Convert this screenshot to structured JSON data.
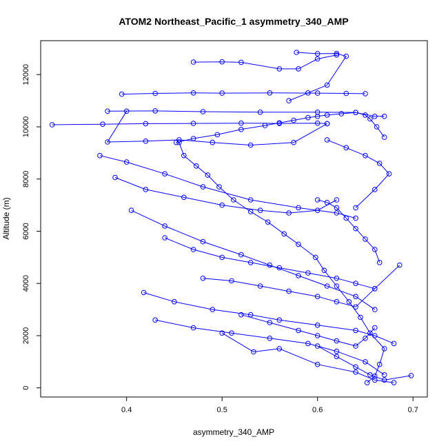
{
  "chart_data": {
    "type": "line",
    "title": "ATOM2 Northeast_Pacific_1 asymmetry_340_AMP",
    "xlabel": "asymmetry_340_AMP",
    "ylabel": "Altitude (m)",
    "xlim": [
      0.31,
      0.715
    ],
    "ylim": [
      -350,
      13300
    ],
    "x_ticks": [
      0.4,
      0.5,
      0.6,
      0.7
    ],
    "x_tick_labels": [
      "0.4",
      "0.5",
      "0.6",
      "0.7"
    ],
    "y_ticks": [
      0,
      2000,
      4000,
      6000,
      8000,
      10000,
      12000
    ],
    "y_tick_labels": [
      "0",
      "2000",
      "4000",
      "6000",
      "8000",
      "10000",
      "12000"
    ],
    "grid": false,
    "legend": "none",
    "marker": "open-circle",
    "color": "#0000ff",
    "series": [
      {
        "x": [
          0.652,
          0.66,
          0.665,
          0.67,
          0.655,
          0.645,
          0.633,
          0.62,
          0.607,
          0.598,
          0.58,
          0.565,
          0.548,
          0.53,
          0.512,
          0.497,
          0.485,
          0.473,
          0.46,
          0.455
        ],
        "y": [
          200,
          450,
          900,
          1500,
          2100,
          2700,
          3300,
          3900,
          4500,
          5000,
          5500,
          5900,
          6350,
          6750,
          7200,
          7700,
          8150,
          8500,
          8900,
          9400
        ]
      },
      {
        "x": [
          0.452,
          0.47,
          0.495,
          0.52,
          0.545,
          0.56,
          0.575,
          0.59,
          0.6,
          0.61,
          0.625,
          0.64,
          0.65,
          0.655,
          0.662,
          0.67
        ],
        "y": [
          9400,
          9550,
          9700,
          9900,
          10050,
          10150,
          10250,
          10350,
          10400,
          10450,
          10500,
          10550,
          10450,
          10300,
          10000,
          9600
        ]
      },
      {
        "x": [
          0.322,
          0.375,
          0.42,
          0.47,
          0.52,
          0.56,
          0.6,
          0.61
        ],
        "y": [
          10080,
          10100,
          10120,
          10130,
          10140,
          10130,
          10140,
          10120
        ]
      },
      {
        "x": [
          0.61,
          0.575,
          0.53,
          0.49,
          0.455,
          0.42,
          0.38,
          0.4
        ],
        "y": [
          10120,
          9400,
          9300,
          9400,
          9500,
          9450,
          9420,
          10600
        ]
      },
      {
        "x": [
          0.38,
          0.43,
          0.48,
          0.54,
          0.6,
          0.64,
          0.66,
          0.67
        ],
        "y": [
          10600,
          10610,
          10580,
          10560,
          10560,
          10550,
          10400,
          10400
        ]
      },
      {
        "x": [
          0.395,
          0.43,
          0.47,
          0.5,
          0.55,
          0.6,
          0.63,
          0.65
        ],
        "y": [
          11250,
          11280,
          11300,
          11290,
          11300,
          11290,
          11280,
          11270
        ]
      },
      {
        "x": [
          0.47,
          0.5,
          0.52,
          0.56,
          0.58,
          0.6,
          0.62
        ],
        "y": [
          12480,
          12490,
          12470,
          12220,
          12220,
          12600,
          12750
        ]
      },
      {
        "x": [
          0.578,
          0.6,
          0.62,
          0.63,
          0.61,
          0.59,
          0.57
        ],
        "y": [
          12850,
          12800,
          12810,
          12700,
          11600,
          11300,
          11000
        ]
      },
      {
        "x": [
          0.372,
          0.4,
          0.44,
          0.48,
          0.53,
          0.58,
          0.62,
          0.64
        ],
        "y": [
          8900,
          8650,
          8200,
          7700,
          7200,
          6900,
          6700,
          6500
        ]
      },
      {
        "x": [
          0.388,
          0.42,
          0.46,
          0.5,
          0.54,
          0.57,
          0.6,
          0.62
        ],
        "y": [
          8060,
          7600,
          7300,
          7000,
          6800,
          6700,
          6800,
          7200
        ]
      },
      {
        "x": [
          0.405,
          0.44,
          0.48,
          0.52,
          0.55,
          0.58,
          0.61,
          0.64,
          0.66
        ],
        "y": [
          6800,
          6200,
          5600,
          5100,
          4700,
          4300,
          3900,
          3500,
          3000
        ]
      },
      {
        "x": [
          0.418,
          0.45,
          0.49,
          0.53,
          0.56,
          0.6,
          0.64,
          0.66,
          0.68
        ],
        "y": [
          3650,
          3300,
          3000,
          2800,
          2600,
          2400,
          2200,
          2000,
          1700
        ]
      },
      {
        "x": [
          0.43,
          0.47,
          0.51,
          0.55,
          0.59,
          0.62,
          0.65,
          0.67
        ],
        "y": [
          2600,
          2300,
          2100,
          1900,
          1700,
          1400,
          1000,
          500
        ]
      },
      {
        "x": [
          0.5,
          0.533,
          0.56,
          0.6,
          0.64,
          0.66,
          0.68
        ],
        "y": [
          2100,
          1380,
          1500,
          900,
          600,
          300,
          200
        ]
      },
      {
        "x": [
          0.44,
          0.47,
          0.5,
          0.53,
          0.56,
          0.59,
          0.62,
          0.64,
          0.66
        ],
        "y": [
          5750,
          5300,
          5000,
          4800,
          4600,
          4400,
          4200,
          4000,
          3800
        ]
      },
      {
        "x": [
          0.48,
          0.51,
          0.54,
          0.57,
          0.6,
          0.62,
          0.64,
          0.66,
          0.686
        ],
        "y": [
          4200,
          4100,
          3900,
          3700,
          3500,
          3300,
          3100,
          3800,
          4700
        ]
      },
      {
        "x": [
          0.6,
          0.62,
          0.64,
          0.655,
          0.67,
          0.698
        ],
        "y": [
          1600,
          1200,
          800,
          500,
          300,
          470
        ]
      },
      {
        "x": [
          0.52,
          0.55,
          0.58,
          0.6,
          0.62,
          0.64,
          0.65,
          0.66
        ],
        "y": [
          2800,
          2500,
          2200,
          2000,
          1800,
          1600,
          1900,
          2300
        ]
      },
      {
        "x": [
          0.6,
          0.61,
          0.62,
          0.63,
          0.64,
          0.65,
          0.66,
          0.665
        ],
        "y": [
          7200,
          7100,
          6900,
          6500,
          6100,
          5700,
          5300,
          4800
        ]
      },
      {
        "x": [
          0.61,
          0.63,
          0.65,
          0.665,
          0.675,
          0.66,
          0.64
        ],
        "y": [
          9500,
          9200,
          8900,
          8600,
          8200,
          7600,
          6900
        ]
      }
    ]
  }
}
